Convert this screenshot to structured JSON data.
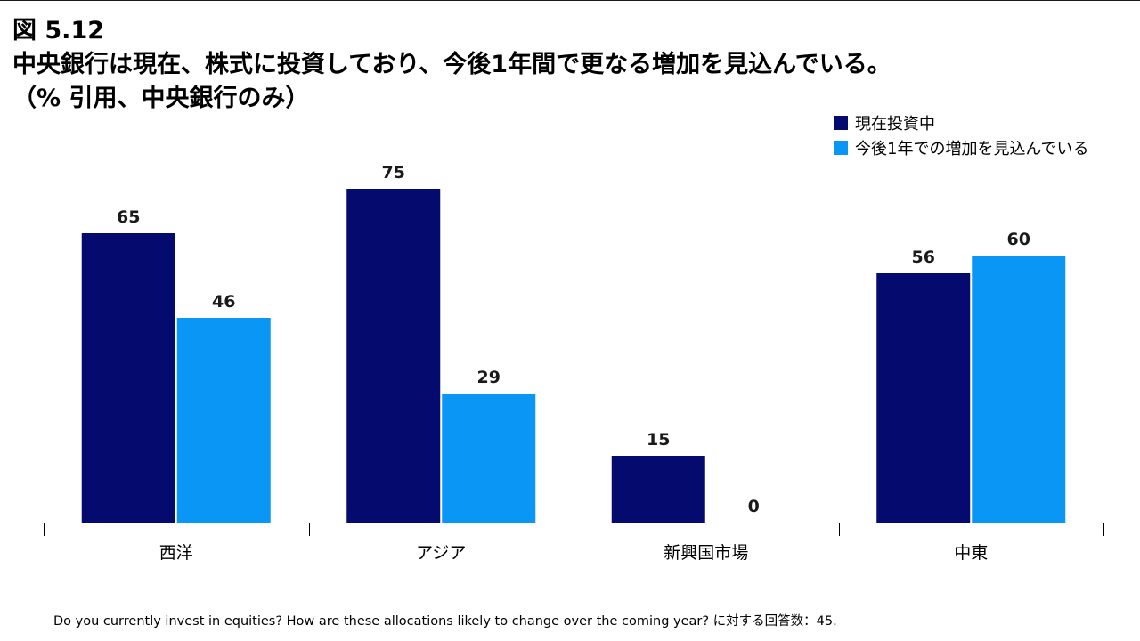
{
  "figure_label": "図 5.12",
  "chart_data": {
    "type": "bar",
    "title": "中央銀行は現在、株式に投資しており、今後1年間で更なる増加を見込んでいる。",
    "subtitle": "（% 引用、中央銀行のみ）",
    "categories": [
      "西洋",
      "アジア",
      "新興国市場",
      "中東"
    ],
    "series": [
      {
        "name": "現在投資中",
        "values": [
          65,
          75,
          15,
          56
        ],
        "color": "#050a6e"
      },
      {
        "name": "今後1年での増加を見込んでいる",
        "values": [
          46,
          29,
          0,
          60
        ],
        "color": "#0a96f5"
      }
    ],
    "ylim": [
      0,
      75
    ],
    "xlabel": "",
    "ylabel": "",
    "grid": false,
    "legend_position": "top-right",
    "data_labels": true
  },
  "footnote": "Do you currently invest in equities? How are these allocations likely to change over the coming year? に対する回答数：45."
}
